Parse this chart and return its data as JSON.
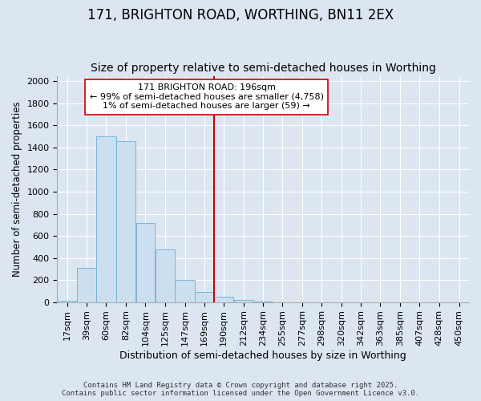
{
  "title": "171, BRIGHTON ROAD, WORTHING, BN11 2EX",
  "subtitle": "Size of property relative to semi-detached houses in Worthing",
  "xlabel": "Distribution of semi-detached houses by size in Worthing",
  "ylabel": "Number of semi-detached properties",
  "footer_line1": "Contains HM Land Registry data © Crown copyright and database right 2025.",
  "footer_line2": "Contains public sector information licensed under the Open Government Licence v3.0.",
  "annotation_title": "171 BRIGHTON ROAD: 196sqm",
  "annotation_line1": "← 99% of semi-detached houses are smaller (4,758)",
  "annotation_line2": "1% of semi-detached houses are larger (59) →",
  "bar_categories": [
    "17sqm",
    "39sqm",
    "60sqm",
    "82sqm",
    "104sqm",
    "125sqm",
    "147sqm",
    "169sqm",
    "190sqm",
    "212sqm",
    "234sqm",
    "255sqm",
    "277sqm",
    "298sqm",
    "320sqm",
    "342sqm",
    "363sqm",
    "385sqm",
    "407sqm",
    "428sqm",
    "450sqm"
  ],
  "bar_left_edges": [
    17,
    39,
    60,
    82,
    104,
    125,
    147,
    169,
    190,
    212,
    234,
    255,
    277,
    298,
    320,
    342,
    363,
    385,
    407,
    428,
    450
  ],
  "bar_widths": [
    22,
    21,
    22,
    22,
    21,
    22,
    22,
    21,
    22,
    22,
    21,
    22,
    21,
    22,
    22,
    21,
    22,
    22,
    21,
    22,
    22
  ],
  "bar_heights": [
    10,
    310,
    1500,
    1460,
    720,
    480,
    200,
    90,
    50,
    20,
    5,
    0,
    0,
    0,
    0,
    0,
    0,
    0,
    0,
    0,
    0
  ],
  "bar_color": "#ccdff0",
  "bar_edgecolor": "#6aaed6",
  "vline_color": "#cc0000",
  "vline_x": 190,
  "annotation_box_edgecolor": "#cc0000",
  "annotation_box_facecolor": "#ffffff",
  "ylim": [
    0,
    2050
  ],
  "yticks": [
    0,
    200,
    400,
    600,
    800,
    1000,
    1200,
    1400,
    1600,
    1800,
    2000
  ],
  "background_color": "#dce6f0",
  "plot_background_color": "#dce6f0",
  "title_fontsize": 12,
  "subtitle_fontsize": 10,
  "xlabel_fontsize": 9,
  "ylabel_fontsize": 8.5,
  "tick_fontsize": 8,
  "annotation_fontsize": 8,
  "footer_fontsize": 6.5
}
